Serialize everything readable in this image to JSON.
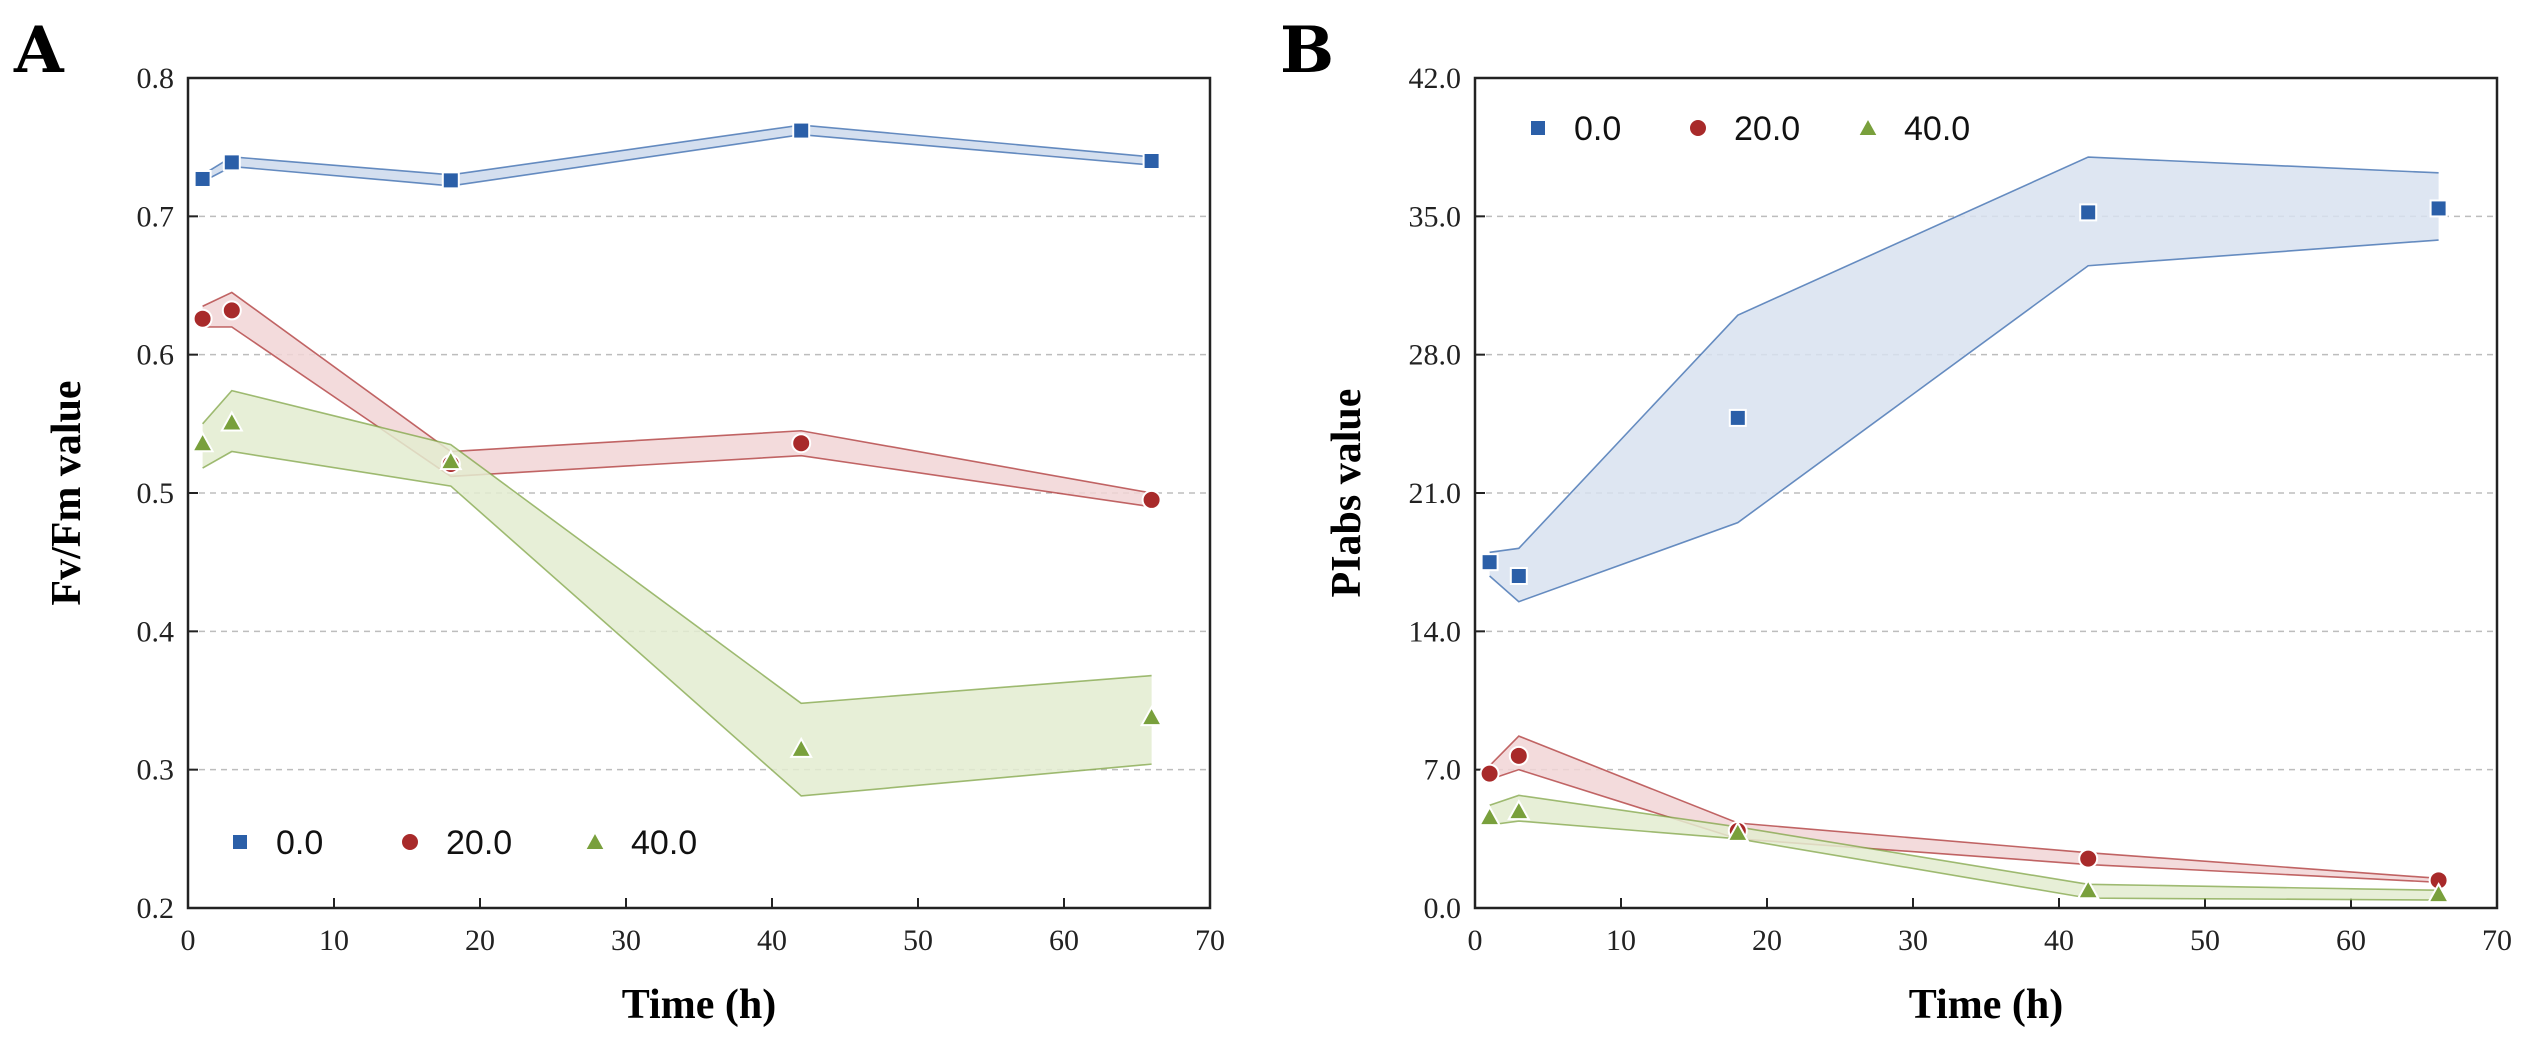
{
  "chart_data": [
    {
      "panel": "A",
      "type": "line",
      "xlabel": "Time (h)",
      "ylabel": "Fv/Fm value",
      "xlim": [
        0,
        70
      ],
      "ylim": [
        0.2,
        0.8
      ],
      "xticks": [
        "0",
        "10",
        "20",
        "30",
        "40",
        "50",
        "60",
        "70"
      ],
      "yticks": [
        "0.2",
        "0.3",
        "0.4",
        "0.5",
        "0.6",
        "0.7",
        "0.8"
      ],
      "grid": "horizontal dashed",
      "legend_position": "bottom-left",
      "x": [
        1,
        3,
        18,
        42,
        66
      ],
      "series": [
        {
          "name": "0.0",
          "marker": "square",
          "color": "#2b5fa8",
          "fill": "#cdd9ec",
          "values": [
            0.727,
            0.739,
            0.726,
            0.762,
            0.74
          ],
          "upper": [
            0.73,
            0.743,
            0.73,
            0.766,
            0.743
          ],
          "lower": [
            0.725,
            0.736,
            0.722,
            0.759,
            0.737
          ]
        },
        {
          "name": "20.0",
          "marker": "circle",
          "color": "#a82a2a",
          "fill": "#f1d5d6",
          "values": [
            0.626,
            0.632,
            0.521,
            0.536,
            0.495
          ],
          "upper": [
            0.635,
            0.645,
            0.53,
            0.545,
            0.5
          ],
          "lower": [
            0.62,
            0.62,
            0.512,
            0.527,
            0.49
          ]
        },
        {
          "name": "40.0",
          "marker": "triangle",
          "color": "#79a03c",
          "fill": "#e3ecd0",
          "values": [
            0.536,
            0.551,
            0.523,
            0.315,
            0.338
          ],
          "upper": [
            0.55,
            0.574,
            0.535,
            0.348,
            0.368
          ],
          "lower": [
            0.518,
            0.53,
            0.505,
            0.281,
            0.304
          ]
        }
      ]
    },
    {
      "panel": "B",
      "type": "line",
      "xlabel": "Time (h)",
      "ylabel": "PIabs value",
      "xlim": [
        0,
        70
      ],
      "ylim": [
        0,
        42
      ],
      "xticks": [
        "0",
        "10",
        "20",
        "30",
        "40",
        "50",
        "60",
        "70"
      ],
      "yticks": [
        "0.0",
        "7.0",
        "14.0",
        "21.0",
        "28.0",
        "35.0",
        "42.0"
      ],
      "grid": "horizontal dashed",
      "legend_position": "top-left",
      "x": [
        1,
        3,
        18,
        42,
        66
      ],
      "series": [
        {
          "name": "0.0",
          "marker": "square",
          "color": "#2b5fa8",
          "fill": "#d8e2f0",
          "values": [
            17.5,
            16.8,
            24.8,
            35.2,
            35.4
          ],
          "upper": [
            18.0,
            18.2,
            30.0,
            38.0,
            37.2
          ],
          "lower": [
            16.8,
            15.5,
            19.5,
            32.5,
            33.8
          ]
        },
        {
          "name": "20.0",
          "marker": "circle",
          "color": "#a82a2a",
          "fill": "#f1d5d6",
          "values": [
            6.8,
            7.7,
            3.9,
            2.5,
            1.4
          ],
          "upper": [
            7.2,
            8.7,
            4.3,
            2.8,
            1.5
          ],
          "lower": [
            6.5,
            7.0,
            3.5,
            2.2,
            1.3
          ]
        },
        {
          "name": "40.0",
          "marker": "triangle",
          "color": "#79a03c",
          "fill": "#e3ecd0",
          "values": [
            4.6,
            4.9,
            3.8,
            0.9,
            0.7
          ],
          "upper": [
            5.2,
            5.7,
            4.1,
            1.2,
            0.9
          ],
          "lower": [
            4.2,
            4.4,
            3.5,
            0.5,
            0.4
          ]
        }
      ]
    }
  ]
}
